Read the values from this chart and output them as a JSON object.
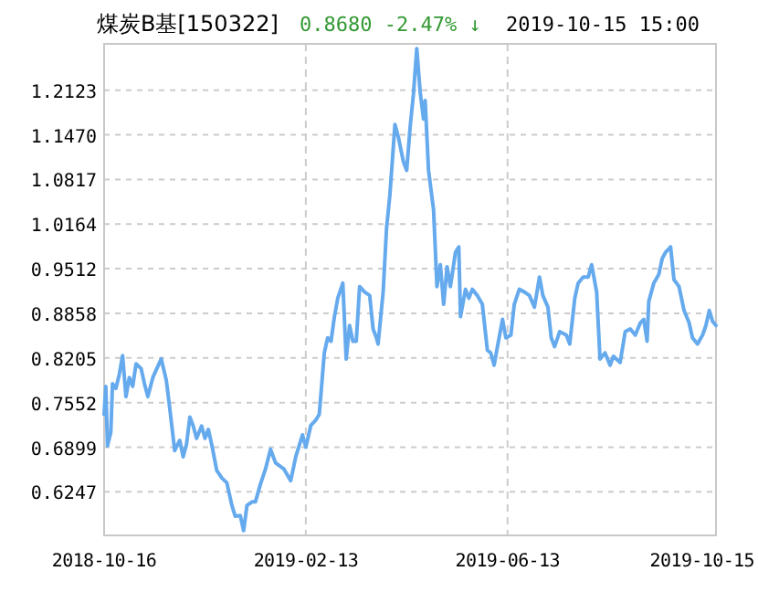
{
  "chart_data": {
    "type": "line",
    "title": "煤炭B基[150322]",
    "subtitle": "0.8680  -2.47% ↓",
    "annotations": [
      "2019-10-15 15:00"
    ],
    "xlim": [
      "2018-10-16",
      "2019-10-15"
    ],
    "xticks": [
      "2018-10-16",
      "2019-02-13",
      "2019-06-13",
      "2019-10-15"
    ],
    "ylim": [
      0.561,
      1.28
    ],
    "yticks": [
      {
        "value": 0.6247,
        "label": "0.6247"
      },
      {
        "value": 0.6899,
        "label": "0.6899"
      },
      {
        "value": 0.7552,
        "label": "0.7552"
      },
      {
        "value": 0.8205,
        "label": "0.8205"
      },
      {
        "value": 0.8858,
        "label": "0.8858"
      },
      {
        "value": 0.9512,
        "label": "0.9512"
      },
      {
        "value": 1.0164,
        "label": "1.0164"
      },
      {
        "value": 1.0817,
        "label": "1.0817"
      },
      {
        "value": 1.147,
        "label": "1.1470"
      },
      {
        "value": 1.2123,
        "label": "1.2123"
      }
    ],
    "grid": true,
    "marker": "none",
    "line_style": "solid",
    "series": [
      {
        "color": "#66aaee",
        "x": [
          "2018-10-16",
          "2018-10-17",
          "2018-10-18",
          "2018-10-20",
          "2018-10-21",
          "2018-10-23",
          "2018-10-25",
          "2018-10-27",
          "2018-10-29",
          "2018-10-31",
          "2018-11-02",
          "2018-11-04",
          "2018-11-07",
          "2018-11-09",
          "2018-11-11",
          "2018-11-14",
          "2018-11-16",
          "2018-11-19",
          "2018-11-22",
          "2018-11-24",
          "2018-11-27",
          "2018-11-30",
          "2018-12-02",
          "2018-12-04",
          "2018-12-06",
          "2018-12-08",
          "2018-12-10",
          "2018-12-13",
          "2018-12-15",
          "2018-12-17",
          "2018-12-19",
          "2018-12-22",
          "2018-12-25",
          "2018-12-28",
          "2018-12-31",
          "2019-01-02",
          "2019-01-05",
          "2019-01-07",
          "2019-01-09",
          "2019-01-12",
          "2019-01-14",
          "2019-01-17",
          "2019-01-20",
          "2019-01-23",
          "2019-01-26",
          "2019-01-31",
          "2019-02-04",
          "2019-02-07",
          "2019-02-11",
          "2019-02-13",
          "2019-02-16",
          "2019-02-19",
          "2019-02-21",
          "2019-02-24",
          "2019-02-26",
          "2019-02-28",
          "2019-03-02",
          "2019-03-04",
          "2019-03-07",
          "2019-03-09",
          "2019-03-11",
          "2019-03-13",
          "2019-03-15",
          "2019-03-17",
          "2019-03-20",
          "2019-03-23",
          "2019-03-25",
          "2019-03-27",
          "2019-03-28",
          "2019-03-31",
          "2019-04-02",
          "2019-04-04",
          "2019-04-07",
          "2019-04-09",
          "2019-04-12",
          "2019-04-14",
          "2019-04-16",
          "2019-04-18",
          "2019-04-20",
          "2019-04-22",
          "2019-04-24",
          "2019-04-25",
          "2019-04-27",
          "2019-04-30",
          "2019-05-02",
          "2019-05-04",
          "2019-05-06",
          "2019-05-08",
          "2019-05-10",
          "2019-05-13",
          "2019-05-15",
          "2019-05-16",
          "2019-05-19",
          "2019-05-21",
          "2019-05-23",
          "2019-05-26",
          "2019-05-29",
          "2019-06-01",
          "2019-06-03",
          "2019-06-05",
          "2019-06-07",
          "2019-06-10",
          "2019-06-12",
          "2019-06-15",
          "2019-06-17",
          "2019-06-20",
          "2019-06-23",
          "2019-06-26",
          "2019-06-29",
          "2019-07-02",
          "2019-07-04",
          "2019-07-07",
          "2019-07-09",
          "2019-07-11",
          "2019-07-14",
          "2019-07-18",
          "2019-07-20",
          "2019-07-23",
          "2019-07-25",
          "2019-07-28",
          "2019-07-31",
          "2019-08-02",
          "2019-08-05",
          "2019-08-07",
          "2019-08-10",
          "2019-08-13",
          "2019-08-15",
          "2019-08-19",
          "2019-08-22",
          "2019-08-25",
          "2019-08-28",
          "2019-08-31",
          "2019-09-02",
          "2019-09-04",
          "2019-09-05",
          "2019-09-08",
          "2019-09-11",
          "2019-09-13",
          "2019-09-15",
          "2019-09-18",
          "2019-09-20",
          "2019-09-23",
          "2019-09-26",
          "2019-09-29",
          "2019-10-01",
          "2019-10-04",
          "2019-10-07",
          "2019-10-09",
          "2019-10-11",
          "2019-10-13",
          "2019-10-15"
        ],
        "values": [
          0.738,
          0.779,
          0.692,
          0.712,
          0.783,
          0.776,
          0.796,
          0.824,
          0.764,
          0.792,
          0.779,
          0.812,
          0.805,
          0.783,
          0.764,
          0.792,
          0.803,
          0.819,
          0.788,
          0.748,
          0.685,
          0.7,
          0.676,
          0.694,
          0.734,
          0.721,
          0.703,
          0.721,
          0.703,
          0.716,
          0.694,
          0.656,
          0.645,
          0.638,
          0.605,
          0.589,
          0.59,
          0.568,
          0.605,
          0.61,
          0.61,
          0.636,
          0.658,
          0.687,
          0.667,
          0.658,
          0.641,
          0.676,
          0.708,
          0.69,
          0.722,
          0.73,
          0.738,
          0.828,
          0.85,
          0.845,
          0.881,
          0.908,
          0.93,
          0.819,
          0.868,
          0.845,
          0.845,
          0.925,
          0.917,
          0.912,
          0.863,
          0.85,
          0.841,
          0.917,
          1.01,
          1.059,
          1.162,
          1.144,
          1.108,
          1.095,
          1.157,
          1.206,
          1.273,
          1.21,
          1.17,
          1.197,
          1.095,
          1.037,
          0.925,
          0.957,
          0.899,
          0.954,
          0.925,
          0.975,
          0.983,
          0.881,
          0.921,
          0.908,
          0.921,
          0.912,
          0.899,
          0.832,
          0.828,
          0.81,
          0.837,
          0.877,
          0.85,
          0.854,
          0.899,
          0.921,
          0.917,
          0.912,
          0.895,
          0.939,
          0.912,
          0.895,
          0.85,
          0.837,
          0.859,
          0.854,
          0.841,
          0.908,
          0.93,
          0.939,
          0.939,
          0.957,
          0.917,
          0.819,
          0.828,
          0.81,
          0.823,
          0.814,
          0.859,
          0.863,
          0.854,
          0.872,
          0.877,
          0.845,
          0.903,
          0.93,
          0.943,
          0.966,
          0.975,
          0.983,
          0.935,
          0.925,
          0.89,
          0.872,
          0.85,
          0.841,
          0.854,
          0.868,
          0.89,
          0.874,
          0.868
        ]
      }
    ]
  }
}
